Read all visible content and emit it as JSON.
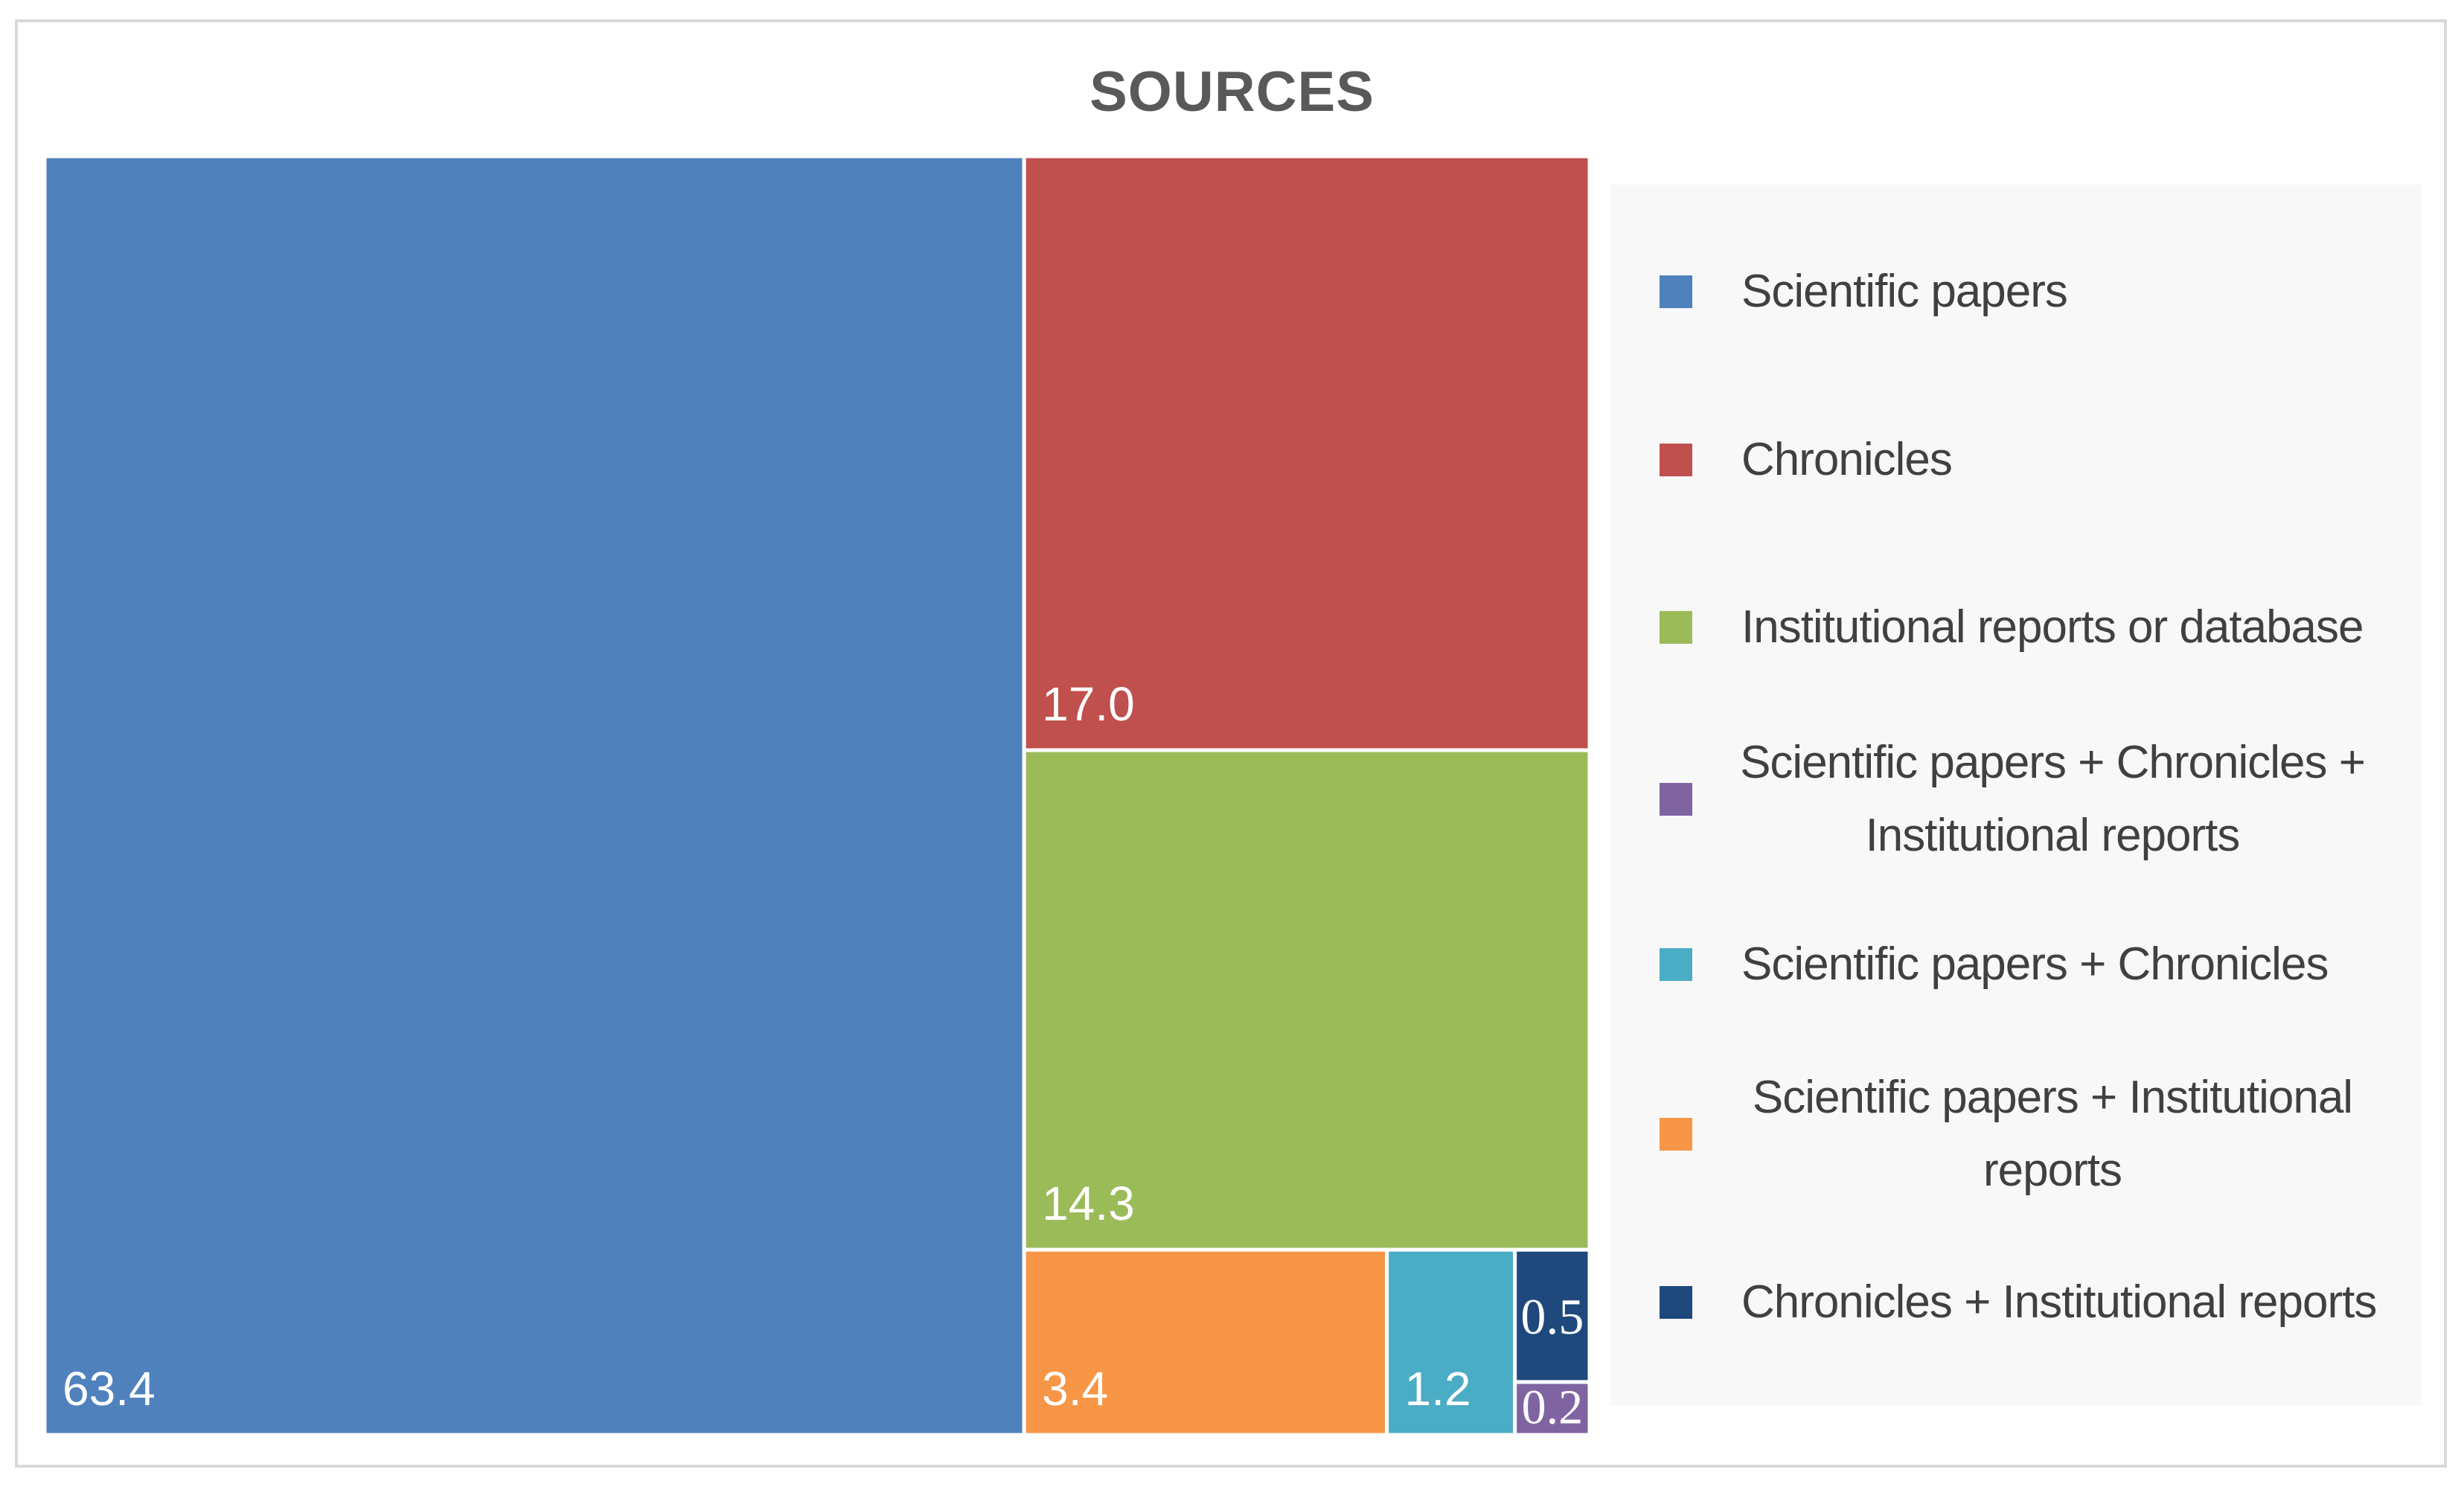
{
  "chart_data": {
    "type": "treemap",
    "title": "SOURCES",
    "categories": [
      "Scientific papers",
      "Chronicles",
      "Institutional reports or database",
      "Scientific papers + Chronicles + Institutional reports",
      "Scientific papers + Chronicles",
      "Scientific papers + Institutional reports",
      "Chronicles + Institutional reports"
    ],
    "values": [
      63.4,
      17.0,
      14.3,
      0.2,
      1.2,
      3.4,
      0.5
    ],
    "value_labels": [
      "63.4",
      "17.0",
      "14.3",
      "0.2",
      "1.2",
      "3.4",
      "0.5"
    ],
    "colors": [
      "#4f81bd",
      "#c0504d",
      "#9bbb59",
      "#8064a2",
      "#4bacc6",
      "#f79646",
      "#1f497d"
    ],
    "legend": {
      "position": "right",
      "items": [
        {
          "label": "Scientific papers",
          "color": "#4f81bd"
        },
        {
          "label": "Chronicles",
          "color": "#c0504d"
        },
        {
          "label": "Institutional  reports or database",
          "color": "#9bbb59"
        },
        {
          "label": "Scientific papers + Chronicles + Institutional  reports",
          "color": "#8064a2"
        },
        {
          "label": "Scientific papers + Chronicles",
          "color": "#4bacc6"
        },
        {
          "label": "Scientific papers + Institutional reports",
          "color": "#f79646"
        },
        {
          "label": "Chronicles + Institutional  reports",
          "color": "#1f497d"
        }
      ]
    }
  }
}
